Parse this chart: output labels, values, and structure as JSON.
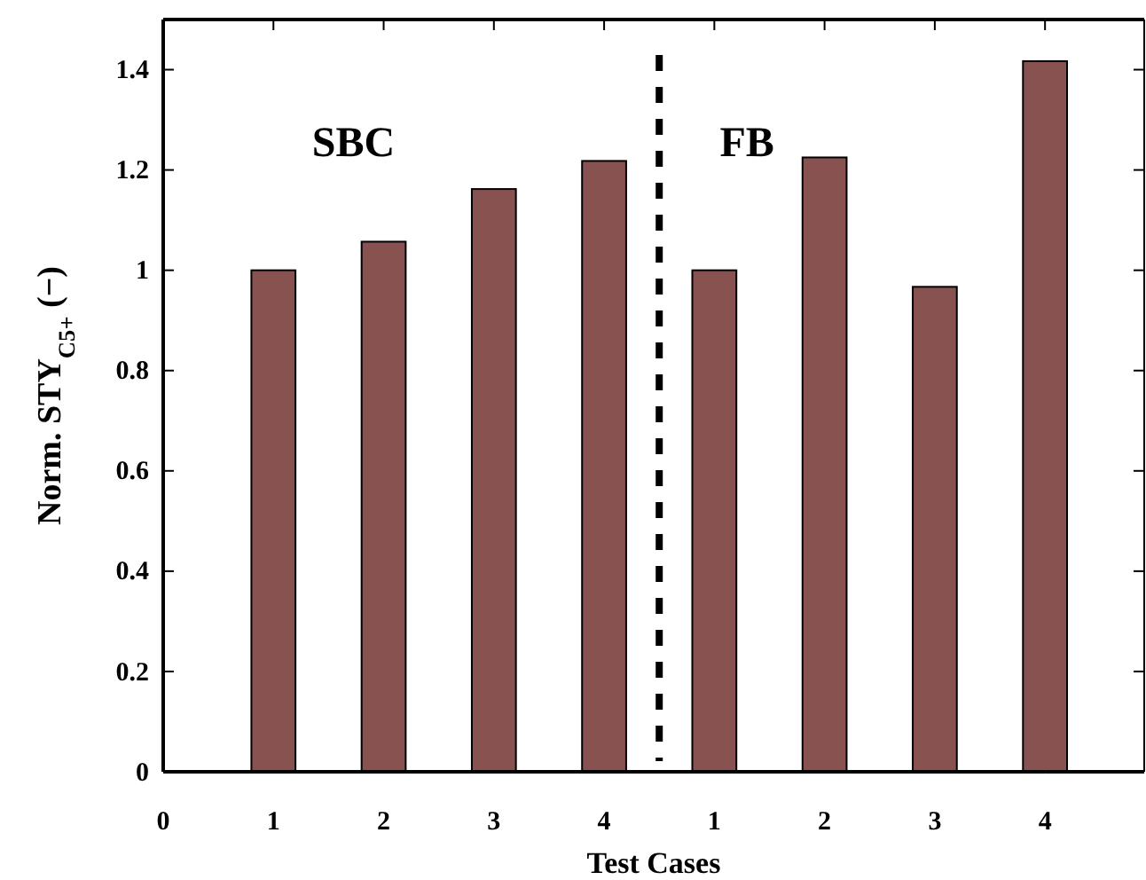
{
  "chart_data": {
    "type": "bar",
    "xlabel": "Test Cases",
    "ylabel": "Norm. STY$_{C5+}$ (−)",
    "categories": [
      "0",
      "1",
      "2",
      "3",
      "4",
      "1",
      "2",
      "3",
      "4"
    ],
    "values": [
      null,
      1.0,
      1.057,
      1.162,
      1.218,
      1.0,
      1.225,
      0.967,
      1.417
    ],
    "color": "#875250",
    "ylim": [
      0,
      1.5
    ],
    "yticks": [
      0,
      0.2,
      0.4,
      0.6,
      0.8,
      1,
      1.2,
      1.4
    ],
    "annotations": [
      "SBC",
      "FB"
    ],
    "grid": false
  }
}
